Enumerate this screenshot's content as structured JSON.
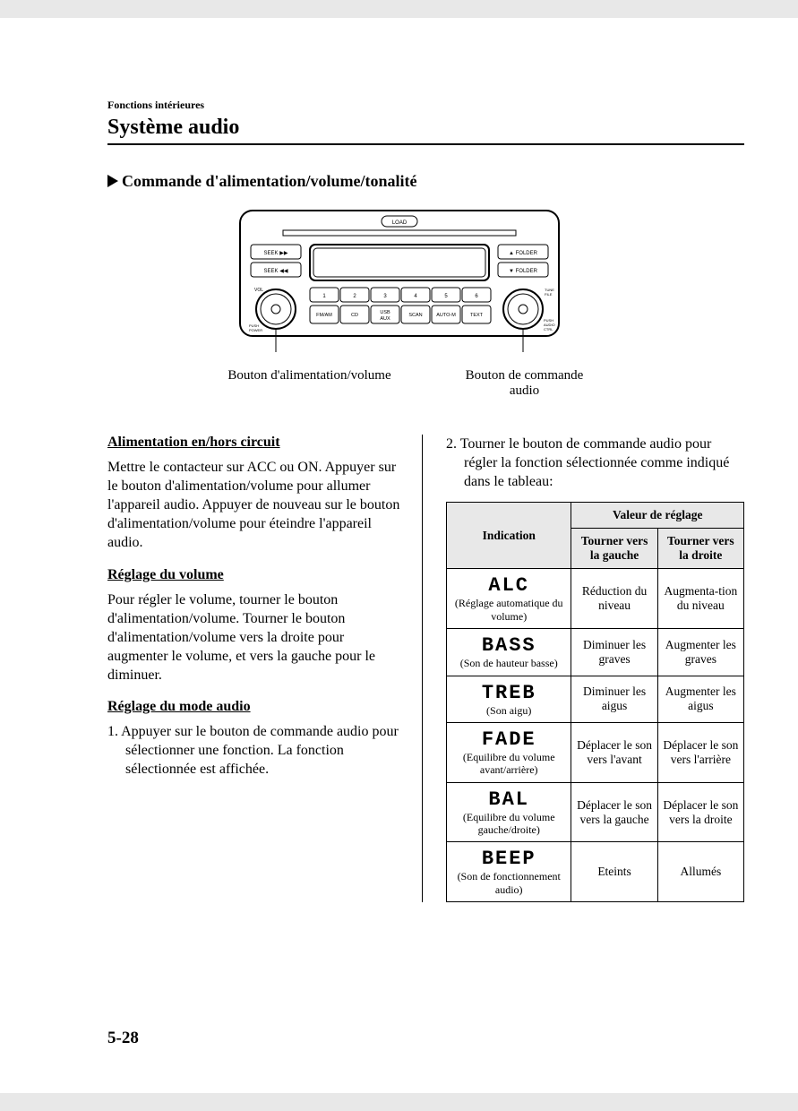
{
  "header": {
    "section": "Fonctions intérieures",
    "title": "Système audio"
  },
  "section_heading": "Commande d'alimentation/volume/tonalité",
  "radio": {
    "buttons": {
      "load": "LOAD",
      "seek_fwd": "SEEK ▶▶",
      "seek_back": "SEEK ◀◀",
      "folder_up": "▲ FOLDER",
      "folder_down": "▼ FOLDER",
      "tune_file": "TUNE\nFILE",
      "push_audio_ctrl": "PUSH\nAUDIO\nCTRL",
      "vol": "VOL",
      "push_power": "PUSH\nPOWER",
      "fmam": "FM/AM",
      "cd": "CD",
      "usbaux": "USB\nAUX",
      "scan": "SCAN",
      "auto_m": "AUTO-M",
      "text": "TEXT",
      "n1": "1",
      "n2": "2",
      "n3": "3",
      "n4": "4",
      "n5": "5",
      "n6": "6"
    },
    "label_left": "Bouton d'alimentation/volume",
    "label_right": "Bouton de commande audio"
  },
  "left_column": {
    "sub1": "Alimentation en/hors circuit",
    "para1": "Mettre le contacteur sur ACC ou ON. Appuyer sur le bouton d'alimentation/volume pour allumer l'appareil audio. Appuyer de nouveau sur le bouton d'alimentation/volume pour éteindre l'appareil audio.",
    "sub2": "Réglage du volume",
    "para2": "Pour régler le volume, tourner le bouton d'alimentation/volume. Tourner le bouton d'alimentation/volume vers la droite pour augmenter le volume, et vers la gauche pour le diminuer.",
    "sub3": "Réglage du mode audio",
    "step1": "1. Appuyer sur le bouton de commande audio pour sélectionner une fonction. La fonction sélectionnée est affichée."
  },
  "right_column": {
    "step2": "2. Tourner le bouton de commande audio pour régler la fonction sélectionnée comme indiqué dans le tableau:",
    "table": {
      "head_value": "Valeur de réglage",
      "head_indication": "Indication",
      "head_left": "Tourner vers la gauche",
      "head_right": "Tourner vers la droite",
      "rows": [
        {
          "lcd": "ALC",
          "sub": "(Réglage automatique du volume)",
          "left": "Réduction du niveau",
          "right": "Augmenta-tion du niveau"
        },
        {
          "lcd": "BASS",
          "sub": "(Son de hauteur basse)",
          "left": "Diminuer les graves",
          "right": "Augmenter les graves"
        },
        {
          "lcd": "TREB",
          "sub": "(Son aigu)",
          "left": "Diminuer les aigus",
          "right": "Augmenter les aigus"
        },
        {
          "lcd": "FADE",
          "sub": "(Equilibre du volume avant/arrière)",
          "left": "Déplacer le son vers l'avant",
          "right": "Déplacer le son vers l'arrière"
        },
        {
          "lcd": "BAL",
          "sub": "(Equilibre du volume gauche/droite)",
          "left": "Déplacer le son vers la gauche",
          "right": "Déplacer le son vers la droite"
        },
        {
          "lcd": "BEEP",
          "sub": "(Son de fonctionnement audio)",
          "left": "Eteints",
          "right": "Allumés"
        }
      ]
    }
  },
  "page_number": "5-28"
}
